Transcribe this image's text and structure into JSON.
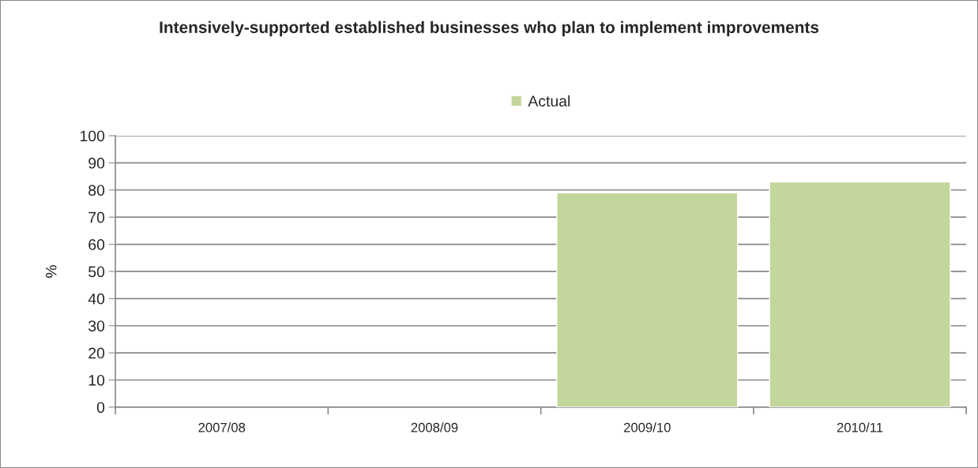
{
  "chart_data": {
    "type": "bar",
    "title": "Intensively-supported established businesses who plan to implement improvements",
    "ylabel": "%",
    "categories": [
      "2007/08",
      "2008/09",
      "2009/10",
      "2010/11"
    ],
    "series": [
      {
        "name": "Actual",
        "color": "#c3d69b",
        "values": [
          null,
          null,
          79,
          83
        ]
      }
    ],
    "ylim": [
      0,
      100
    ],
    "yticks": [
      0,
      10,
      20,
      30,
      40,
      50,
      60,
      70,
      80,
      90,
      100
    ],
    "grid": "y",
    "legend": "top"
  }
}
